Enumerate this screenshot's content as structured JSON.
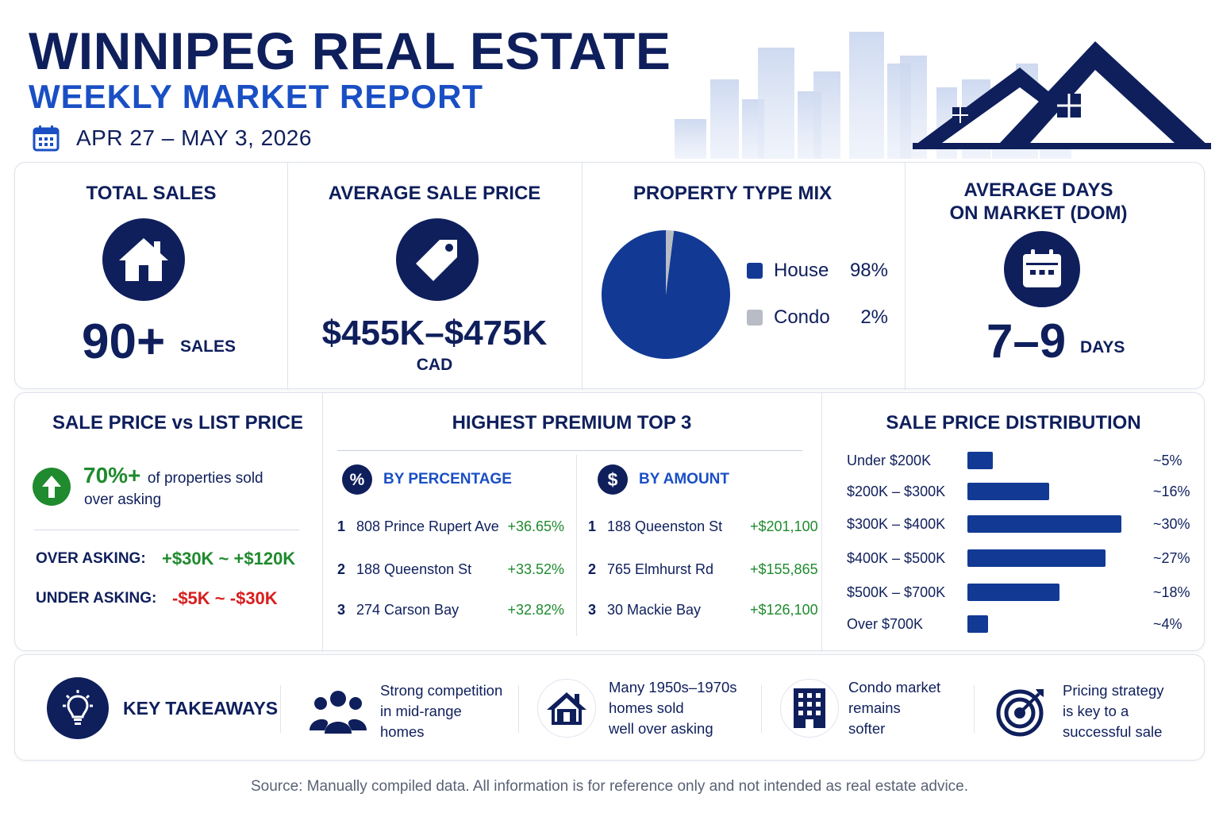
{
  "header": {
    "title": "WINNIPEG REAL ESTATE",
    "subtitle": "WEEKLY MARKET REPORT",
    "date_range": "APR 27 – MAY 3, 2026",
    "calendar_icon": "calendar-icon"
  },
  "kpis": {
    "total_sales": {
      "title": "TOTAL SALES",
      "icon": "house-icon",
      "value": "90+",
      "unit": "SALES"
    },
    "avg_price": {
      "title": "AVERAGE SALE PRICE",
      "icon": "price-tag-icon",
      "value": "$455K–$475K",
      "unit": "CAD"
    },
    "property_mix": {
      "title": "PROPERTY TYPE MIX",
      "items": [
        {
          "label": "House",
          "value": "98%",
          "color": "#123a94"
        },
        {
          "label": "Condo",
          "value": "2%",
          "color": "#b8bcc4"
        }
      ]
    },
    "dom": {
      "title_line1": "AVERAGE DAYS",
      "title_line2": "ON MARKET (DOM)",
      "icon": "calendar-icon",
      "value": "7–9",
      "unit": "DAYS"
    }
  },
  "chart_data": [
    {
      "type": "pie",
      "categories": [
        "House",
        "Condo"
      ],
      "values": [
        98,
        2
      ],
      "colors": [
        "#123a94",
        "#b8bcc4"
      ],
      "title": "PROPERTY TYPE MIX"
    },
    {
      "type": "bar",
      "orientation": "horizontal",
      "title": "SALE PRICE DISTRIBUTION",
      "categories": [
        "Under $200K",
        "$200K – $300K",
        "$300K – $400K",
        "$400K – $500K",
        "$500K – $700K",
        "Over $700K"
      ],
      "values": [
        5,
        16,
        30,
        27,
        18,
        4
      ],
      "value_labels": [
        "~5%",
        "~16%",
        "~30%",
        "~27%",
        "~18%",
        "~4%"
      ],
      "xlim": [
        0,
        31
      ],
      "color": "#123a94"
    }
  ],
  "sale_vs_list": {
    "title": "SALE PRICE vs LIST PRICE",
    "icon": "arrow-up-icon",
    "pct": "70%+",
    "text_line1": "of properties sold",
    "text_line2": "over asking",
    "over_label": "OVER ASKING:",
    "over_value": "+$30K ~ +$120K",
    "under_label": "UNDER ASKING:",
    "under_value": "-$5K ~ -$30K"
  },
  "premium": {
    "title": "HIGHEST PREMIUM TOP 3",
    "by_pct": {
      "icon": "percent-icon",
      "label": "BY PERCENTAGE",
      "rows": [
        {
          "rank": "1",
          "name": "808 Prince Rupert Ave",
          "value": "+36.65%"
        },
        {
          "rank": "2",
          "name": "188 Queenston St",
          "value": "+33.52%"
        },
        {
          "rank": "3",
          "name": "274 Carson Bay",
          "value": "+32.82%"
        }
      ]
    },
    "by_amount": {
      "icon": "dollar-icon",
      "label": "BY AMOUNT",
      "rows": [
        {
          "rank": "1",
          "name": "188 Queenston St",
          "value": "+$201,100"
        },
        {
          "rank": "2",
          "name": "765 Elmhurst Rd",
          "value": "+$155,865"
        },
        {
          "rank": "3",
          "name": "30 Mackie Bay",
          "value": "+$126,100"
        }
      ]
    }
  },
  "takeaways": {
    "title": "KEY TAKEAWAYS",
    "icon": "lightbulb-icon",
    "items": [
      {
        "icon": "people-icon",
        "lines": [
          "Strong competition",
          "in mid-range",
          "homes"
        ]
      },
      {
        "icon": "house-icon",
        "lines": [
          "Many 1950s–1970s",
          "homes sold",
          "well over asking"
        ]
      },
      {
        "icon": "building-icon",
        "lines": [
          "Condo market",
          "remains",
          "softer"
        ]
      },
      {
        "icon": "target-icon",
        "lines": [
          "Pricing strategy",
          "is key to a",
          "successful sale"
        ]
      }
    ]
  },
  "footer": {
    "source": "Source: Manually compiled data. All information is for reference only and not intended as real estate advice."
  }
}
